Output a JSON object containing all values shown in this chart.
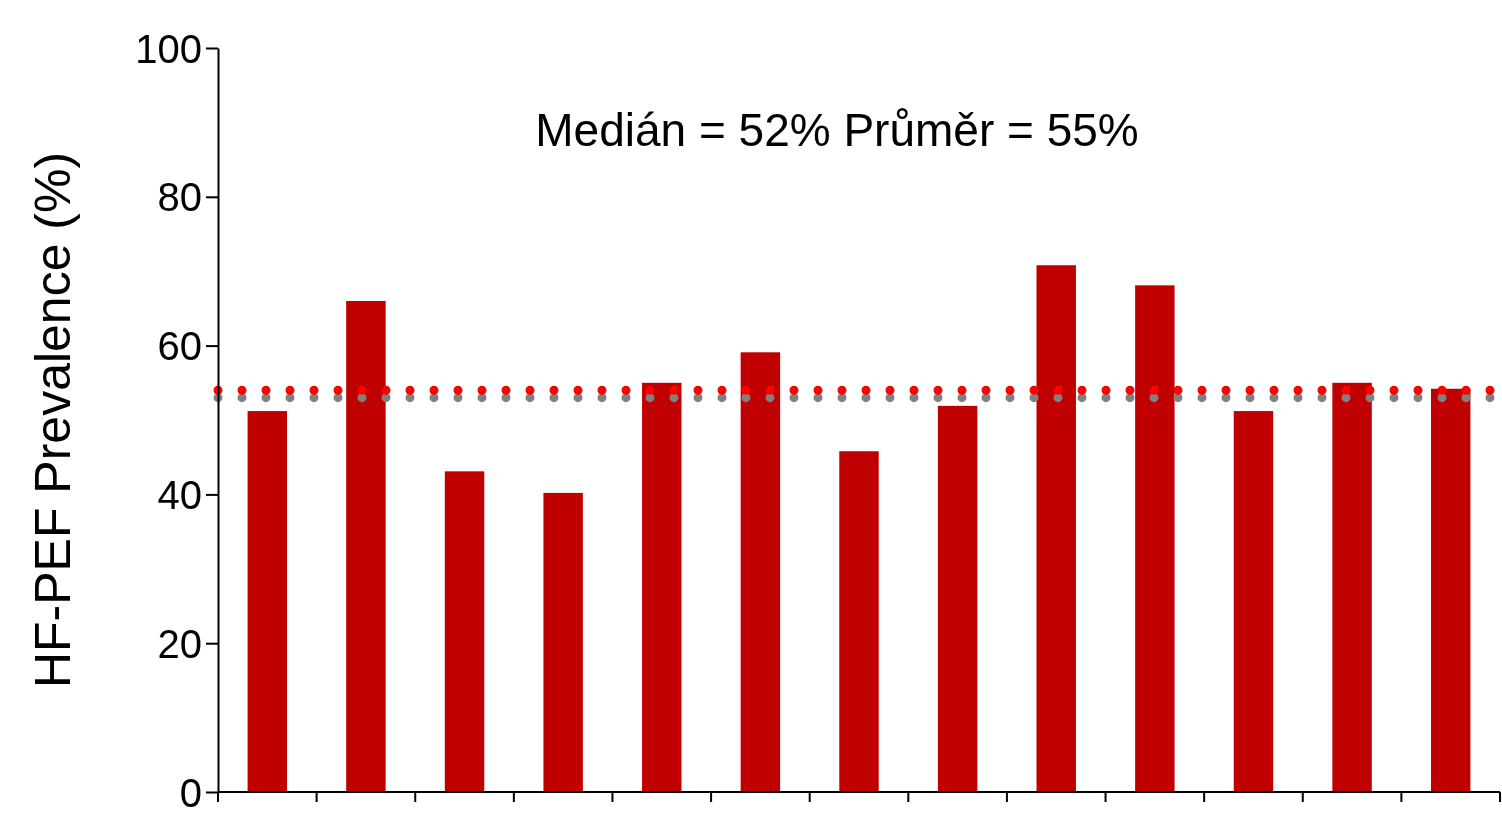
{
  "chart_data": {
    "type": "bar",
    "ylabel": "HF-PEF Prevalence (%)",
    "categories": [
      null,
      null,
      null,
      null,
      null,
      null,
      null,
      null,
      null,
      null,
      null,
      null,
      null
    ],
    "values": [
      51.2,
      66.0,
      43.1,
      40.2,
      55.0,
      59.1,
      45.8,
      51.9,
      70.8,
      68.1,
      51.2,
      55.0,
      54.2
    ],
    "color": "#c00000",
    "ylim": [
      0,
      100
    ],
    "yticks": [
      0,
      20,
      40,
      60,
      80,
      100
    ],
    "ref_lines": [
      {
        "axis": "y",
        "value": 53,
        "color": "#808080",
        "line_style": "dotted"
      },
      {
        "axis": "y",
        "value": 54,
        "color": "#ff0000",
        "line_style": "dotted"
      }
    ],
    "annotations": [
      "Medián = 52%  Průměr = 55%"
    ]
  }
}
